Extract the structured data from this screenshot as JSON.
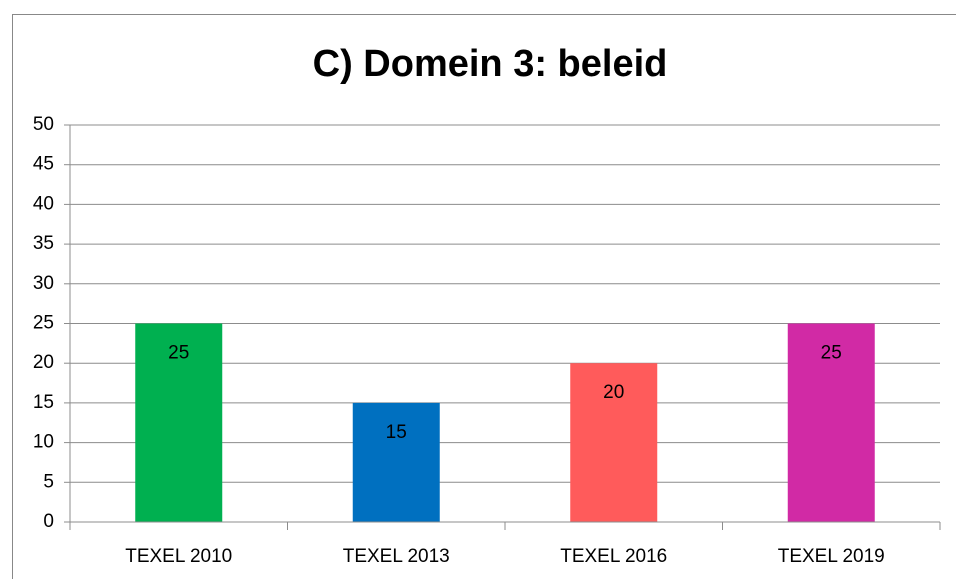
{
  "chart_data": {
    "type": "bar",
    "title": "C) Domein 3: beleid",
    "categories": [
      "TEXEL 2010",
      "TEXEL 2013",
      "TEXEL 2016",
      "TEXEL 2019"
    ],
    "values": [
      25,
      15,
      20,
      25
    ],
    "colors": [
      "#00b050",
      "#0070c0",
      "#ff5b5b",
      "#d12aa5"
    ],
    "ylim": [
      0,
      50
    ],
    "yticks": [
      0,
      5,
      10,
      15,
      20,
      25,
      30,
      35,
      40,
      45,
      50
    ],
    "grid": true
  }
}
